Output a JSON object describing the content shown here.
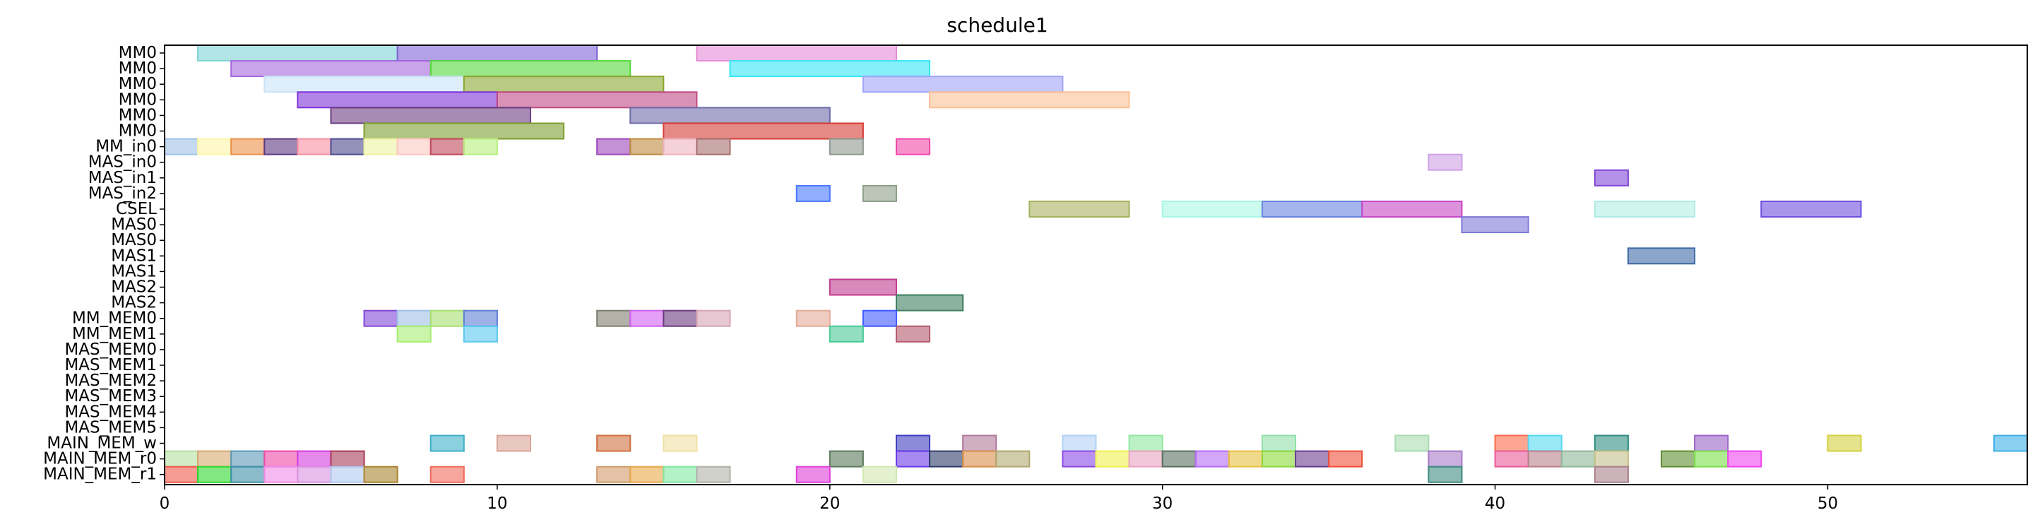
{
  "chart_data": {
    "type": "gantt",
    "title": "schedule1",
    "xlabel": "",
    "ylabel": "",
    "xlim": [
      0,
      56
    ],
    "x_ticks": [
      0,
      10,
      20,
      30,
      40,
      50
    ],
    "grid": false,
    "rows": [
      "MM0",
      "MM0",
      "MM0",
      "MM0",
      "MM0",
      "MM0",
      "MM_in0",
      "MAS_in0",
      "MAS_in1",
      "MAS_in2",
      "CSEL",
      "MAS0",
      "MAS0",
      "MAS1",
      "MAS1",
      "MAS2",
      "MAS2",
      "MM_MEM0",
      "MM_MEM1",
      "MAS_MEM0",
      "MAS_MEM1",
      "MAS_MEM2",
      "MAS_MEM3",
      "MAS_MEM4",
      "MAS_MEM5",
      "MAIN_MEM_w",
      "MAIN_MEM_r0",
      "MAIN_MEM_r1"
    ],
    "bars": [
      {
        "row": 0,
        "start": 1,
        "end": 7,
        "color": "#7fd3d3"
      },
      {
        "row": 0,
        "start": 7,
        "end": 13,
        "color": "#7e62d6"
      },
      {
        "row": 0,
        "start": 16,
        "end": 22,
        "color": "#e589d6"
      },
      {
        "row": 1,
        "start": 2,
        "end": 8,
        "color": "#a567de"
      },
      {
        "row": 1,
        "start": 8,
        "end": 14,
        "color": "#54d83a"
      },
      {
        "row": 1,
        "start": 17,
        "end": 23,
        "color": "#34e6f6"
      },
      {
        "row": 2,
        "start": 3,
        "end": 9,
        "color": "#c8e3f6"
      },
      {
        "row": 2,
        "start": 9,
        "end": 15,
        "color": "#8aa62e"
      },
      {
        "row": 2,
        "start": 21,
        "end": 27,
        "color": "#a0a4f8"
      },
      {
        "row": 3,
        "start": 4,
        "end": 10,
        "color": "#7d33d8"
      },
      {
        "row": 3,
        "start": 10,
        "end": 16,
        "color": "#c04a84"
      },
      {
        "row": 3,
        "start": 23,
        "end": 29,
        "color": "#fcbf94"
      },
      {
        "row": 4,
        "start": 5,
        "end": 11,
        "color": "#6c3d82"
      },
      {
        "row": 4,
        "start": 14,
        "end": 20,
        "color": "#6f6aa8"
      },
      {
        "row": 5,
        "start": 6,
        "end": 12,
        "color": "#7d9e2f"
      },
      {
        "row": 5,
        "start": 15,
        "end": 21,
        "color": "#d53c34"
      },
      {
        "row": 6,
        "start": 0,
        "end": 1,
        "color": "#9ec1e6"
      },
      {
        "row": 6,
        "start": 1,
        "end": 2,
        "color": "#fdf5a8"
      },
      {
        "row": 6,
        "start": 2,
        "end": 3,
        "color": "#ec8f47"
      },
      {
        "row": 6,
        "start": 3,
        "end": 4,
        "color": "#5d3880"
      },
      {
        "row": 6,
        "start": 4,
        "end": 5,
        "color": "#f88ea1"
      },
      {
        "row": 6,
        "start": 5,
        "end": 6,
        "color": "#4c4a8e"
      },
      {
        "row": 6,
        "start": 6,
        "end": 7,
        "color": "#ecf2a0"
      },
      {
        "row": 6,
        "start": 7,
        "end": 8,
        "color": "#fcc9c0"
      },
      {
        "row": 6,
        "start": 8,
        "end": 9,
        "color": "#c0485a"
      },
      {
        "row": 6,
        "start": 9,
        "end": 10,
        "color": "#b6ef7c"
      },
      {
        "row": 6,
        "start": 13,
        "end": 14,
        "color": "#9c46bb"
      },
      {
        "row": 6,
        "start": 14,
        "end": 15,
        "color": "#bd8a3e"
      },
      {
        "row": 6,
        "start": 15,
        "end": 16,
        "color": "#eeb2c0"
      },
      {
        "row": 6,
        "start": 16,
        "end": 17,
        "color": "#a66e6e"
      },
      {
        "row": 6,
        "start": 20,
        "end": 21,
        "color": "#909890"
      },
      {
        "row": 6,
        "start": 22,
        "end": 23,
        "color": "#f048a8"
      },
      {
        "row": 7,
        "start": 38,
        "end": 39,
        "color": "#cea0e6"
      },
      {
        "row": 8,
        "start": 43,
        "end": 44,
        "color": "#8248d8"
      },
      {
        "row": 9,
        "start": 19,
        "end": 20,
        "color": "#4a78ff"
      },
      {
        "row": 9,
        "start": 21,
        "end": 22,
        "color": "#8e9e88"
      },
      {
        "row": 10,
        "start": 26,
        "end": 29,
        "color": "#a8b060"
      },
      {
        "row": 10,
        "start": 30,
        "end": 33,
        "color": "#a8f6e4"
      },
      {
        "row": 10,
        "start": 33,
        "end": 36,
        "color": "#6684e0"
      },
      {
        "row": 10,
        "start": 36,
        "end": 39,
        "color": "#c648c6"
      },
      {
        "row": 10,
        "start": 43,
        "end": 46,
        "color": "#b0ece4"
      },
      {
        "row": 10,
        "start": 48,
        "end": 51,
        "color": "#7050e0"
      },
      {
        "row": 11,
        "start": 39,
        "end": 41,
        "color": "#7e7ad8"
      },
      {
        "row": 13,
        "start": 44,
        "end": 46,
        "color": "#3e6aa6"
      },
      {
        "row": 15,
        "start": 20,
        "end": 22,
        "color": "#c03a8e"
      },
      {
        "row": 16,
        "start": 22,
        "end": 24,
        "color": "#3e7e5e"
      },
      {
        "row": 17,
        "start": 6,
        "end": 7,
        "color": "#8248d8"
      },
      {
        "row": 17,
        "start": 7,
        "end": 8,
        "color": "#9ec1e6"
      },
      {
        "row": 17,
        "start": 8,
        "end": 9,
        "color": "#a6e070"
      },
      {
        "row": 17,
        "start": 9,
        "end": 10,
        "color": "#5e7ed8"
      },
      {
        "row": 17,
        "start": 13,
        "end": 14,
        "color": "#807e70"
      },
      {
        "row": 17,
        "start": 14,
        "end": 15,
        "color": "#d060f0"
      },
      {
        "row": 17,
        "start": 15,
        "end": 16,
        "color": "#6a3a7e"
      },
      {
        "row": 17,
        "start": 16,
        "end": 17,
        "color": "#d6a4b4"
      },
      {
        "row": 17,
        "start": 19,
        "end": 20,
        "color": "#e4aa98"
      },
      {
        "row": 17,
        "start": 21,
        "end": 22,
        "color": "#3e58ff"
      },
      {
        "row": 18,
        "start": 7,
        "end": 8,
        "color": "#a6ee72"
      },
      {
        "row": 18,
        "start": 9,
        "end": 10,
        "color": "#5ac8f0"
      },
      {
        "row": 18,
        "start": 20,
        "end": 21,
        "color": "#48c898"
      },
      {
        "row": 18,
        "start": 22,
        "end": 23,
        "color": "#b45a6c"
      },
      {
        "row": 25,
        "start": 8,
        "end": 9,
        "color": "#3eb0c8"
      },
      {
        "row": 25,
        "start": 10,
        "end": 11,
        "color": "#d8a496"
      },
      {
        "row": 25,
        "start": 13,
        "end": 14,
        "color": "#d07040"
      },
      {
        "row": 25,
        "start": 15,
        "end": 16,
        "color": "#f0e0a4"
      },
      {
        "row": 25,
        "start": 22,
        "end": 23,
        "color": "#3e3ec0"
      },
      {
        "row": 25,
        "start": 24,
        "end": 25,
        "color": "#b07a9a"
      },
      {
        "row": 25,
        "start": 27,
        "end": 28,
        "color": "#b0d0f4"
      },
      {
        "row": 25,
        "start": 29,
        "end": 30,
        "color": "#90e8a0"
      },
      {
        "row": 25,
        "start": 33,
        "end": 34,
        "color": "#90e0a8"
      },
      {
        "row": 25,
        "start": 37,
        "end": 38,
        "color": "#a8dcb0"
      },
      {
        "row": 25,
        "start": 40,
        "end": 41,
        "color": "#fa6a4a"
      },
      {
        "row": 25,
        "start": 41,
        "end": 42,
        "color": "#54d8f0"
      },
      {
        "row": 25,
        "start": 43,
        "end": 44,
        "color": "#2e8e80"
      },
      {
        "row": 25,
        "start": 46,
        "end": 47,
        "color": "#9a62c8"
      },
      {
        "row": 25,
        "start": 50,
        "end": 51,
        "color": "#d4d040"
      },
      {
        "row": 25,
        "start": 55,
        "end": 56,
        "color": "#3eb0e8"
      },
      {
        "row": 26,
        "start": 0,
        "end": 1,
        "color": "#b4e0a0"
      },
      {
        "row": 26,
        "start": 1,
        "end": 2,
        "color": "#d8a870"
      },
      {
        "row": 26,
        "start": 2,
        "end": 3,
        "color": "#5a9ab8"
      },
      {
        "row": 26,
        "start": 3,
        "end": 4,
        "color": "#f04aa8"
      },
      {
        "row": 26,
        "start": 4,
        "end": 5,
        "color": "#d43ae0"
      },
      {
        "row": 26,
        "start": 5,
        "end": 6,
        "color": "#a83a5a"
      },
      {
        "row": 26,
        "start": 20,
        "end": 21,
        "color": "#5a7a5a"
      },
      {
        "row": 26,
        "start": 22,
        "end": 23,
        "color": "#6a3ae8"
      },
      {
        "row": 26,
        "start": 23,
        "end": 24,
        "color": "#2e3e6a"
      },
      {
        "row": 26,
        "start": 24,
        "end": 25,
        "color": "#d88e4a"
      },
      {
        "row": 26,
        "start": 25,
        "end": 26,
        "color": "#b0a870"
      },
      {
        "row": 26,
        "start": 27,
        "end": 28,
        "color": "#8a4ae8"
      },
      {
        "row": 26,
        "start": 28,
        "end": 29,
        "color": "#f0f050"
      },
      {
        "row": 26,
        "start": 29,
        "end": 30,
        "color": "#e8a4c0"
      },
      {
        "row": 26,
        "start": 30,
        "end": 31,
        "color": "#5a7060"
      },
      {
        "row": 26,
        "start": 31,
        "end": 32,
        "color": "#b46af4"
      },
      {
        "row": 26,
        "start": 32,
        "end": 33,
        "color": "#e8c040"
      },
      {
        "row": 26,
        "start": 33,
        "end": 34,
        "color": "#8ad838"
      },
      {
        "row": 26,
        "start": 34,
        "end": 35,
        "color": "#6a3e8e"
      },
      {
        "row": 26,
        "start": 35,
        "end": 36,
        "color": "#f0503a"
      },
      {
        "row": 26,
        "start": 38,
        "end": 39,
        "color": "#a87ac8"
      },
      {
        "row": 26,
        "start": 40,
        "end": 41,
        "color": "#ea5a9a"
      },
      {
        "row": 26,
        "start": 41,
        "end": 42,
        "color": "#b8808a"
      },
      {
        "row": 26,
        "start": 42,
        "end": 43,
        "color": "#8eb898"
      },
      {
        "row": 26,
        "start": 43,
        "end": 44,
        "color": "#c4c08a"
      },
      {
        "row": 26,
        "start": 45,
        "end": 46,
        "color": "#5e8e30"
      },
      {
        "row": 26,
        "start": 46,
        "end": 47,
        "color": "#7ae04a"
      },
      {
        "row": 26,
        "start": 47,
        "end": 48,
        "color": "#f044f0"
      },
      {
        "row": 27,
        "start": 0,
        "end": 1,
        "color": "#f05a4a"
      },
      {
        "row": 27,
        "start": 1,
        "end": 2,
        "color": "#2ed82e"
      },
      {
        "row": 27,
        "start": 2,
        "end": 3,
        "color": "#3e90a8"
      },
      {
        "row": 27,
        "start": 3,
        "end": 4,
        "color": "#f08ae8"
      },
      {
        "row": 27,
        "start": 4,
        "end": 5,
        "color": "#d890e0"
      },
      {
        "row": 27,
        "start": 5,
        "end": 6,
        "color": "#b0c8f0"
      },
      {
        "row": 27,
        "start": 6,
        "end": 7,
        "color": "#a8842e"
      },
      {
        "row": 27,
        "start": 8,
        "end": 9,
        "color": "#f06a5a"
      },
      {
        "row": 27,
        "start": 13,
        "end": 14,
        "color": "#d09a6a"
      },
      {
        "row": 27,
        "start": 14,
        "end": 15,
        "color": "#e8a84a"
      },
      {
        "row": 27,
        "start": 15,
        "end": 16,
        "color": "#80e8a0"
      },
      {
        "row": 27,
        "start": 16,
        "end": 17,
        "color": "#b0b0a8"
      },
      {
        "row": 27,
        "start": 19,
        "end": 20,
        "color": "#e040d8"
      },
      {
        "row": 27,
        "start": 21,
        "end": 22,
        "color": "#d0e8b0"
      },
      {
        "row": 27,
        "start": 38,
        "end": 39,
        "color": "#3e8a80"
      },
      {
        "row": 27,
        "start": 43,
        "end": 44,
        "color": "#a8808a"
      }
    ]
  }
}
